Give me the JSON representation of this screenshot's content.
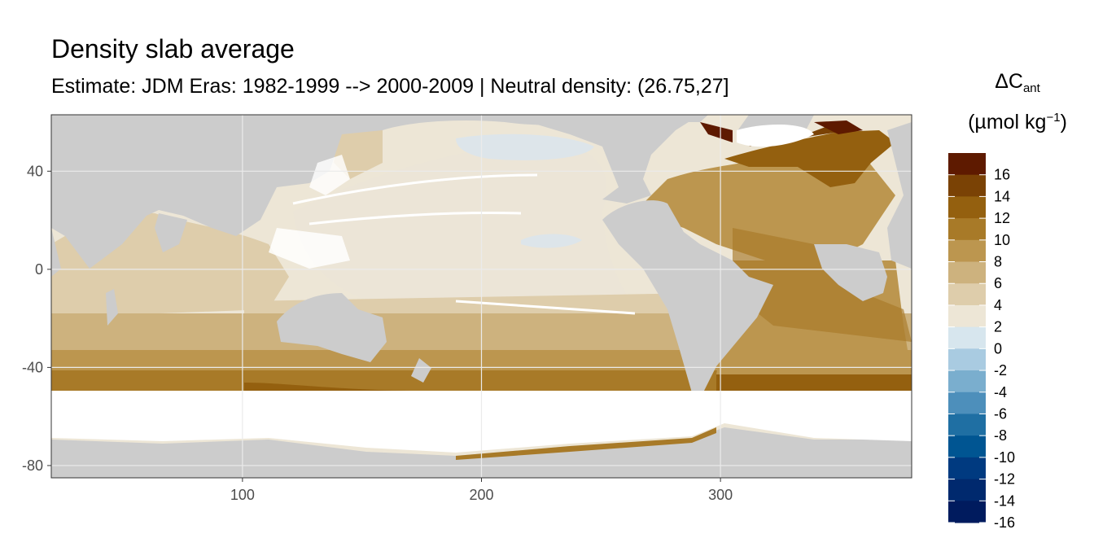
{
  "chart_data": {
    "type": "heatmap",
    "title": "Density slab average",
    "subtitle": "Estimate: JDM Eras: 1982-1999 --> 2000-2009 | Neutral density: (26.75,27]",
    "legend": {
      "title_main": "ΔC",
      "title_sub": "ant",
      "units": "(µmol kg",
      "units_sup": "−1",
      "units_close": ")",
      "placement": "right",
      "breaks": [
        -16,
        -14,
        -12,
        -10,
        -8,
        -6,
        -4,
        -2,
        0,
        2,
        4,
        6,
        8,
        10,
        12,
        14,
        16
      ],
      "colors": [
        "#001b5e",
        "#00296e",
        "#003a80",
        "#005592",
        "#1f6fa3",
        "#4d8fbb",
        "#7aaece",
        "#a9cbe1",
        "#d7e6ee",
        "#ede6d6",
        "#decdab",
        "#cdb27e",
        "#bc964f",
        "#a87a28",
        "#94600f",
        "#7a4205",
        "#5e1a00"
      ]
    },
    "xlim": [
      20,
      380
    ],
    "ylim": [
      -85,
      63
    ],
    "x_ticks": [
      100,
      200,
      300
    ],
    "y_ticks": [
      40,
      0,
      -40,
      -80
    ],
    "grid": true,
    "colors": {
      "land": "#cccccc",
      "nodata": "#ffffff"
    }
  }
}
